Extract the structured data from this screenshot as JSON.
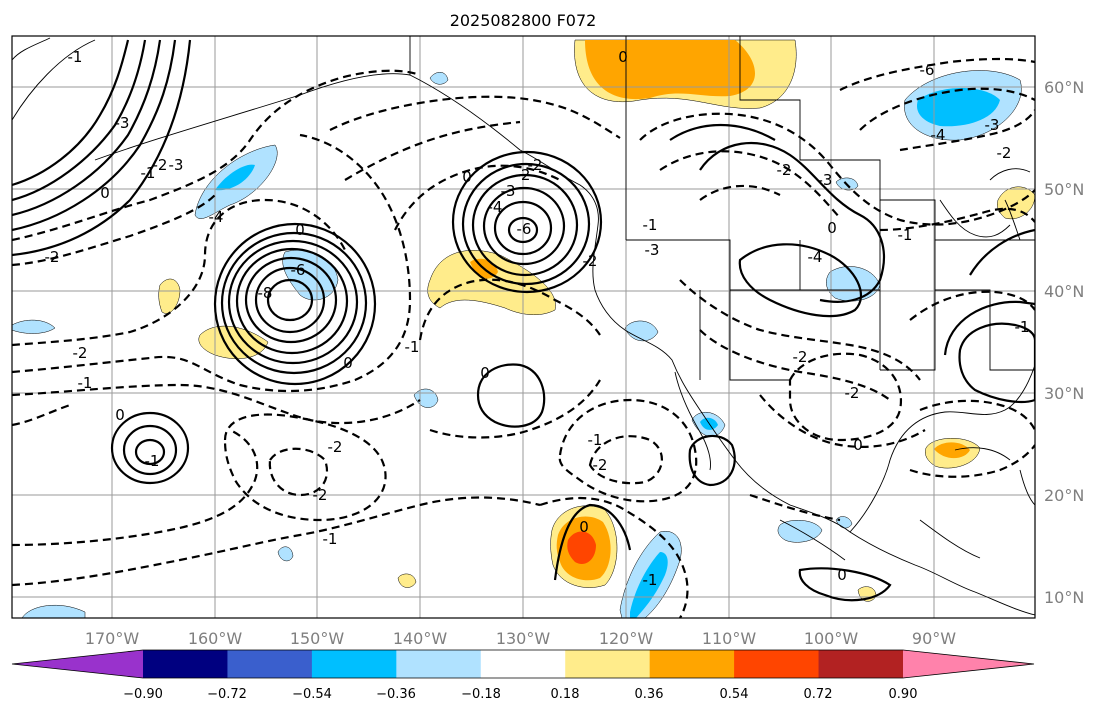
{
  "figure": {
    "title": "2025082800 F072"
  },
  "map": {
    "longitude_labels": [
      "170°W",
      "160°W",
      "150°W",
      "140°W",
      "130°W",
      "120°W",
      "110°W",
      "100°W",
      "90°W"
    ],
    "latitude_labels": [
      "60°N",
      "50°N",
      "40°N",
      "30°N",
      "20°N",
      "10°N"
    ],
    "contour_labels": [
      "-1",
      "-3",
      "-2",
      "0",
      "-1",
      "-2",
      "-3",
      "-4",
      "-6",
      "-8",
      "0",
      "-2",
      "-1",
      "0",
      "0",
      "-1",
      "-2",
      "-2",
      "-1",
      "-4",
      "-6",
      "-3",
      "-2",
      "0",
      "-3",
      "-1",
      "-2",
      "-2",
      "0",
      "-2",
      "-1",
      "0",
      "-1",
      "0",
      "-2",
      "-3",
      "0",
      "-4",
      "-6",
      "-4",
      "-3",
      "-2",
      "-1",
      "-2",
      "0",
      "-1",
      "-2",
      "-1",
      "0"
    ]
  },
  "colorbar": {
    "tick_labels": [
      "−0.90",
      "−0.72",
      "−0.54",
      "−0.36",
      "−0.18",
      "0.18",
      "0.36",
      "0.54",
      "0.72",
      "0.90"
    ],
    "colors": {
      "under": "#9932cc",
      "bins": [
        "#000080",
        "#3a5fcd",
        "#00bfff",
        "#b0e2ff",
        "#ffffff",
        "#ffec8b",
        "#ffa500",
        "#ff4500",
        "#b22222"
      ],
      "over": "#ff82ab"
    }
  },
  "fill_colors": {
    "light_blue": "#b0e2ff",
    "deep_sky_blue": "#00bfff",
    "light_yellow": "#ffec8b",
    "orange": "#ffa500",
    "orange_red": "#ff4500"
  }
}
